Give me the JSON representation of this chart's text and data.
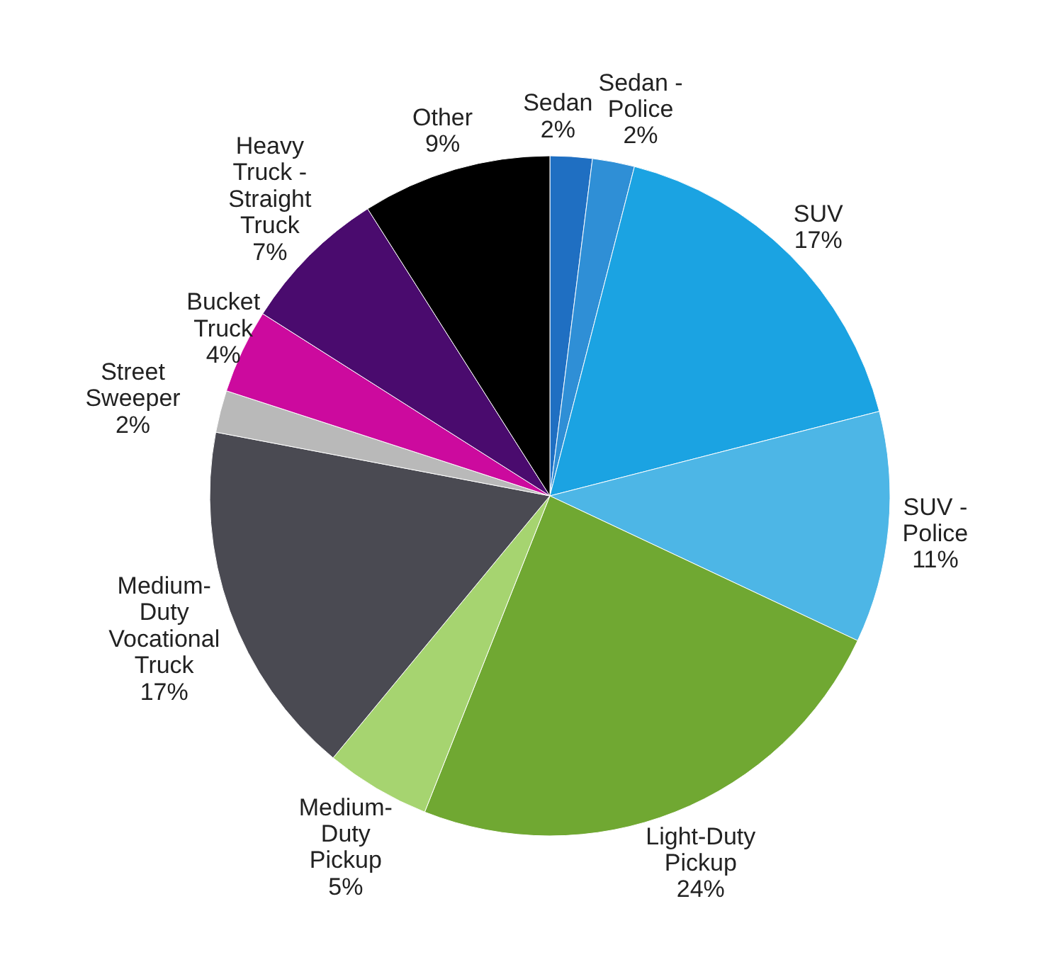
{
  "chart_data": {
    "type": "pie",
    "categories": [
      "Sedan",
      "Sedan - Police",
      "SUV",
      "SUV - Police",
      "Light-Duty Pickup",
      "Medium-Duty Pickup",
      "Medium-Duty Vocational Truck",
      "Street Sweeper",
      "Bucket Truck",
      "Heavy Truck - Straight Truck",
      "Other"
    ],
    "values": [
      2,
      2,
      17,
      11,
      24,
      5,
      17,
      2,
      4,
      7,
      9
    ],
    "colors": [
      "#1f6fc2",
      "#2f8fd6",
      "#1ba3e2",
      "#4db6e6",
      "#70a832",
      "#a6d470",
      "#4a4a52",
      "#b9b9b9",
      "#cc0a9e",
      "#4a0b6e",
      "#000000"
    ],
    "value_labels": [
      "2%",
      "2%",
      "17%",
      "11%",
      "24%",
      "5%",
      "17%",
      "2%",
      "4%",
      "7%",
      "9%"
    ]
  }
}
